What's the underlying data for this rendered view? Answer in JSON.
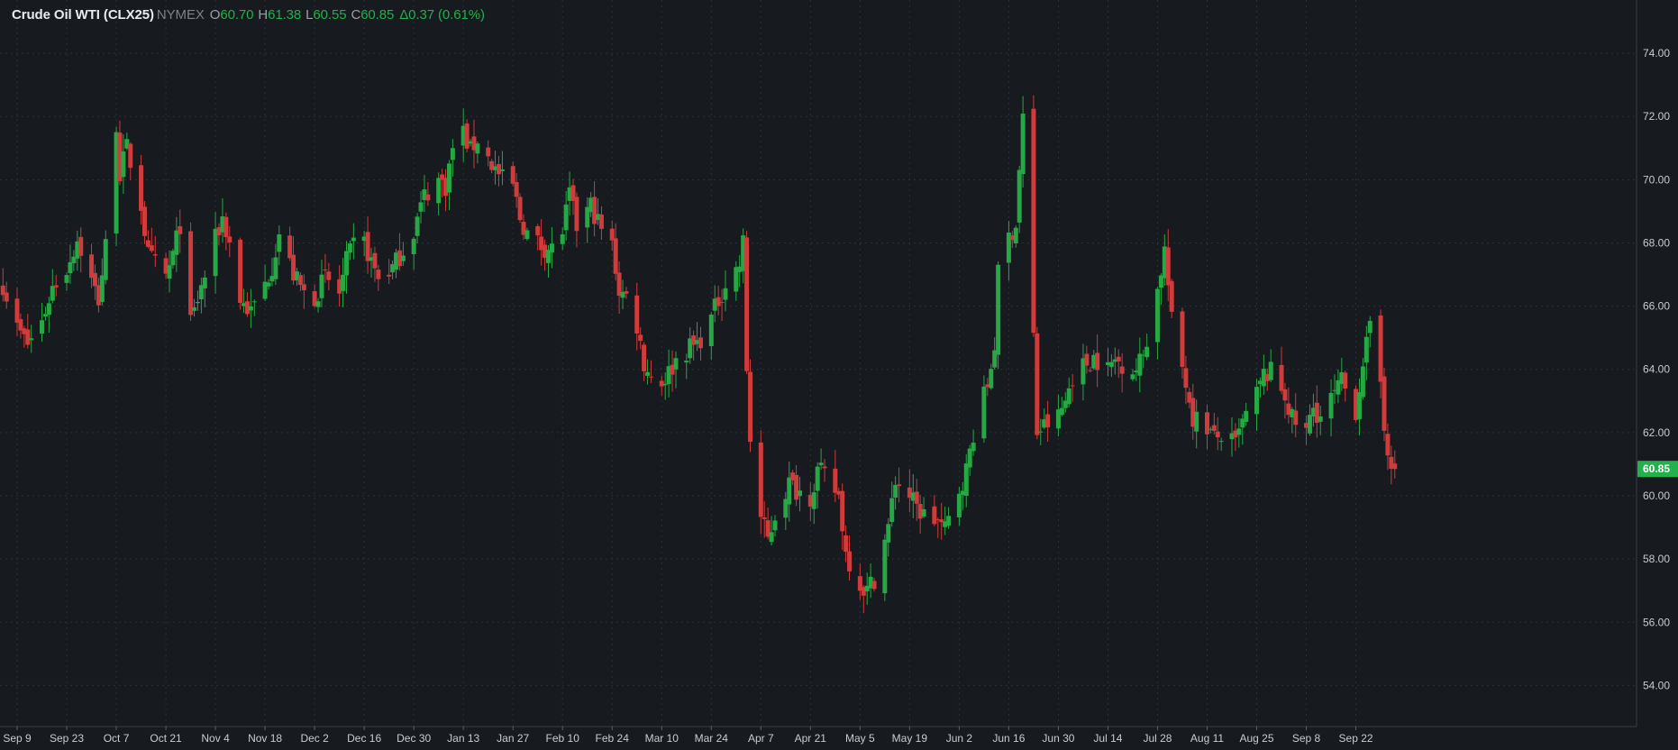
{
  "header": {
    "symbol": "Crude Oil WTI (CLX25)",
    "exchange": "NYMEX",
    "open_key": "O",
    "open": "60.70",
    "high_key": "H",
    "high": "61.38",
    "low_key": "L",
    "low": "60.55",
    "close_key": "C",
    "close": "60.85",
    "change": "Δ0.37 (0.61%)"
  },
  "colors": {
    "background": "#171a1e",
    "up": "#26a845",
    "down": "#d03b3b",
    "grid": "#2c3036",
    "axis_text": "#c8ccd1",
    "last_price_bg": "#23b14d"
  },
  "chart_data": {
    "type": "candlestick",
    "title": "",
    "xlabel": "",
    "ylabel": "",
    "ylim": [
      52.7,
      75.0
    ],
    "y_ticks": [
      "54.00",
      "56.00",
      "58.00",
      "60.00",
      "62.00",
      "64.00",
      "66.00",
      "68.00",
      "70.00",
      "72.00",
      "74.00"
    ],
    "x_ticks": [
      {
        "date": "2024-09-09",
        "label": "Sep 9"
      },
      {
        "date": "2024-09-23",
        "label": "Sep 23"
      },
      {
        "date": "2024-10-07",
        "label": "Oct 7"
      },
      {
        "date": "2024-10-21",
        "label": "Oct 21"
      },
      {
        "date": "2024-11-04",
        "label": "Nov 4"
      },
      {
        "date": "2024-11-18",
        "label": "Nov 18"
      },
      {
        "date": "2024-12-02",
        "label": "Dec 2"
      },
      {
        "date": "2024-12-16",
        "label": "Dec 16"
      },
      {
        "date": "2024-12-30",
        "label": "Dec 30"
      },
      {
        "date": "2025-01-13",
        "label": "Jan 13"
      },
      {
        "date": "2025-01-27",
        "label": "Jan 27"
      },
      {
        "date": "2025-02-10",
        "label": "Feb 10"
      },
      {
        "date": "2025-02-24",
        "label": "Feb 24"
      },
      {
        "date": "2025-03-10",
        "label": "Mar 10"
      },
      {
        "date": "2025-03-24",
        "label": "Mar 24"
      },
      {
        "date": "2025-04-07",
        "label": "Apr 7"
      },
      {
        "date": "2025-04-21",
        "label": "Apr 21"
      },
      {
        "date": "2025-05-05",
        "label": "May 5"
      },
      {
        "date": "2025-05-19",
        "label": "May 19"
      },
      {
        "date": "2025-06-02",
        "label": "Jun 2"
      },
      {
        "date": "2025-06-16",
        "label": "Jun 16"
      },
      {
        "date": "2025-06-30",
        "label": "Jun 30"
      },
      {
        "date": "2025-07-14",
        "label": "Jul 14"
      },
      {
        "date": "2025-07-28",
        "label": "Jul 28"
      },
      {
        "date": "2025-08-11",
        "label": "Aug 11"
      },
      {
        "date": "2025-08-25",
        "label": "Aug 25"
      },
      {
        "date": "2025-09-08",
        "label": "Sep 8"
      },
      {
        "date": "2025-09-22",
        "label": "Sep 22"
      }
    ],
    "last_price": "60.85",
    "close_path": [
      [
        "2024-09-05",
        66.7
      ],
      [
        "2024-09-09",
        65.3
      ],
      [
        "2024-09-12",
        64.8
      ],
      [
        "2024-09-16",
        65.5
      ],
      [
        "2024-09-19",
        66.6
      ],
      [
        "2024-09-23",
        67.2
      ],
      [
        "2024-09-26",
        68.1
      ],
      [
        "2024-09-30",
        66.8
      ],
      [
        "2024-10-02",
        66.2
      ],
      [
        "2024-10-04",
        67.9
      ],
      [
        "2024-10-07",
        71.8
      ],
      [
        "2024-10-08",
        70.2
      ],
      [
        "2024-10-10",
        71.0
      ],
      [
        "2024-10-14",
        69.2
      ],
      [
        "2024-10-16",
        67.6
      ],
      [
        "2024-10-21",
        66.9
      ],
      [
        "2024-10-23",
        67.6
      ],
      [
        "2024-10-25",
        68.6
      ],
      [
        "2024-10-28",
        65.4
      ],
      [
        "2024-10-30",
        66.2
      ],
      [
        "2024-11-04",
        68.1
      ],
      [
        "2024-11-06",
        68.8
      ],
      [
        "2024-11-08",
        68.0
      ],
      [
        "2024-11-11",
        66.2
      ],
      [
        "2024-11-14",
        65.8
      ],
      [
        "2024-11-18",
        66.7
      ],
      [
        "2024-11-20",
        67.3
      ],
      [
        "2024-11-22",
        68.3
      ],
      [
        "2024-11-26",
        67.0
      ],
      [
        "2024-11-29",
        66.4
      ],
      [
        "2024-12-02",
        66.3
      ],
      [
        "2024-12-05",
        66.9
      ],
      [
        "2024-12-09",
        66.4
      ],
      [
        "2024-12-11",
        67.4
      ],
      [
        "2024-12-13",
        67.9
      ],
      [
        "2024-12-16",
        68.0
      ],
      [
        "2024-12-18",
        67.4
      ],
      [
        "2024-12-20",
        66.9
      ],
      [
        "2024-12-24",
        67.2
      ],
      [
        "2024-12-27",
        67.8
      ],
      [
        "2024-12-30",
        68.4
      ],
      [
        "2025-01-02",
        69.5
      ],
      [
        "2025-01-06",
        70.0
      ],
      [
        "2025-01-08",
        69.8
      ],
      [
        "2025-01-10",
        71.0
      ],
      [
        "2025-01-13",
        71.5
      ],
      [
        "2025-01-15",
        70.9
      ],
      [
        "2025-01-17",
        71.3
      ],
      [
        "2025-01-21",
        70.5
      ],
      [
        "2025-01-24",
        70.0
      ],
      [
        "2025-01-27",
        69.8
      ],
      [
        "2025-01-29",
        68.8
      ],
      [
        "2025-01-31",
        68.3
      ],
      [
        "2025-02-04",
        67.9
      ],
      [
        "2025-02-07",
        67.8
      ],
      [
        "2025-02-10",
        68.4
      ],
      [
        "2025-02-12",
        69.5
      ],
      [
        "2025-02-14",
        68.5
      ],
      [
        "2025-02-18",
        69.2
      ],
      [
        "2025-02-21",
        68.4
      ],
      [
        "2025-02-24",
        67.9
      ],
      [
        "2025-02-26",
        66.5
      ],
      [
        "2025-02-28",
        66.3
      ],
      [
        "2025-03-03",
        65.4
      ],
      [
        "2025-03-05",
        64.2
      ],
      [
        "2025-03-07",
        63.8
      ],
      [
        "2025-03-10",
        63.6
      ],
      [
        "2025-03-12",
        63.9
      ],
      [
        "2025-03-14",
        64.3
      ],
      [
        "2025-03-18",
        64.7
      ],
      [
        "2025-03-20",
        64.8
      ],
      [
        "2025-03-24",
        65.6
      ],
      [
        "2025-03-26",
        66.2
      ],
      [
        "2025-03-28",
        66.7
      ],
      [
        "2025-04-01",
        67.3
      ],
      [
        "2025-04-02",
        68.0
      ],
      [
        "2025-04-03",
        64.0
      ],
      [
        "2025-04-04",
        61.8
      ],
      [
        "2025-04-07",
        59.3
      ],
      [
        "2025-04-09",
        58.6
      ],
      [
        "2025-04-11",
        59.4
      ],
      [
        "2025-04-15",
        60.4
      ],
      [
        "2025-04-17",
        60.2
      ],
      [
        "2025-04-21",
        60.0
      ],
      [
        "2025-04-23",
        60.8
      ],
      [
        "2025-04-25",
        60.6
      ],
      [
        "2025-04-29",
        60.0
      ],
      [
        "2025-05-01",
        58.2
      ],
      [
        "2025-05-05",
        57.2
      ],
      [
        "2025-05-07",
        57.0
      ],
      [
        "2025-05-09",
        57.4
      ],
      [
        "2025-05-13",
        59.0
      ],
      [
        "2025-05-15",
        60.5
      ],
      [
        "2025-05-19",
        60.0
      ],
      [
        "2025-05-21",
        59.6
      ],
      [
        "2025-05-23",
        59.4
      ],
      [
        "2025-05-27",
        59.2
      ],
      [
        "2025-05-29",
        58.9
      ],
      [
        "2025-06-02",
        60.2
      ],
      [
        "2025-06-04",
        60.8
      ],
      [
        "2025-06-06",
        62.0
      ],
      [
        "2025-06-10",
        63.5
      ],
      [
        "2025-06-12",
        64.8
      ],
      [
        "2025-06-13",
        67.0
      ],
      [
        "2025-06-16",
        68.2
      ],
      [
        "2025-06-18",
        68.6
      ],
      [
        "2025-06-20",
        72.0
      ],
      [
        "2025-06-23",
        65.0
      ],
      [
        "2025-06-24",
        62.0
      ],
      [
        "2025-06-26",
        62.2
      ],
      [
        "2025-06-30",
        62.5
      ],
      [
        "2025-07-02",
        63.0
      ],
      [
        "2025-07-04",
        63.8
      ],
      [
        "2025-07-08",
        64.2
      ],
      [
        "2025-07-10",
        64.4
      ],
      [
        "2025-07-14",
        64.0
      ],
      [
        "2025-07-16",
        64.3
      ],
      [
        "2025-07-18",
        64.2
      ],
      [
        "2025-07-22",
        64.0
      ],
      [
        "2025-07-24",
        64.5
      ],
      [
        "2025-07-28",
        66.5
      ],
      [
        "2025-07-30",
        67.8
      ],
      [
        "2025-08-01",
        65.5
      ],
      [
        "2025-08-05",
        63.6
      ],
      [
        "2025-08-07",
        62.5
      ],
      [
        "2025-08-11",
        62.2
      ],
      [
        "2025-08-13",
        61.8
      ],
      [
        "2025-08-15",
        61.9
      ],
      [
        "2025-08-19",
        61.6
      ],
      [
        "2025-08-21",
        62.3
      ],
      [
        "2025-08-25",
        63.2
      ],
      [
        "2025-08-27",
        63.8
      ],
      [
        "2025-08-29",
        63.9
      ],
      [
        "2025-09-02",
        63.2
      ],
      [
        "2025-09-04",
        62.4
      ],
      [
        "2025-09-08",
        62.0
      ],
      [
        "2025-09-10",
        62.8
      ],
      [
        "2025-09-12",
        62.5
      ],
      [
        "2025-09-16",
        63.2
      ],
      [
        "2025-09-18",
        63.6
      ],
      [
        "2025-09-22",
        62.7
      ],
      [
        "2025-09-24",
        64.3
      ],
      [
        "2025-09-26",
        65.2
      ],
      [
        "2025-09-29",
        63.6
      ],
      [
        "2025-09-30",
        62.3
      ],
      [
        "2025-10-01",
        61.6
      ],
      [
        "2025-10-02",
        60.6
      ],
      [
        "2025-10-03",
        60.85
      ]
    ]
  }
}
